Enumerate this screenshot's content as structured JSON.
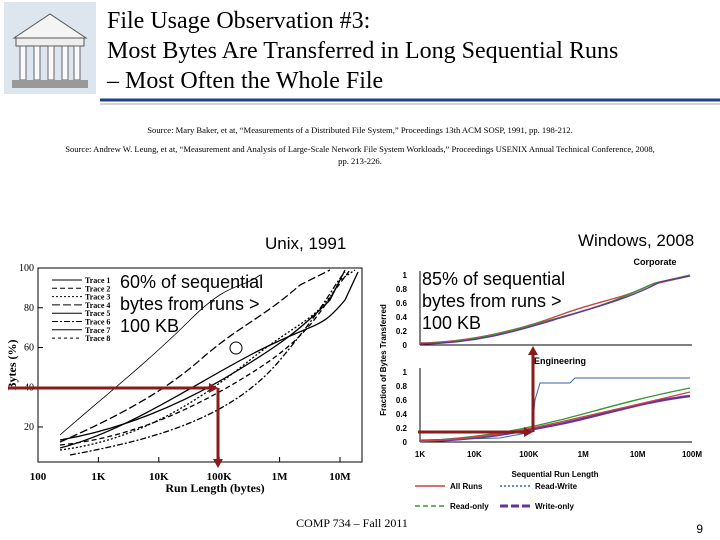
{
  "header": {
    "title": [
      "File Usage Observation #3:",
      "Most Bytes Are Transferred in Long Sequential Runs",
      "– Most Often the Whole File"
    ]
  },
  "sources": [
    "Source: Mary Baker, et at, “Measurements of a Distributed File System,” Proceedings 13th ACM SOSP, 1991, pp. 198-212.",
    "Source: Andrew W. Leung, et at, “Measurement and Analysis of Large-Scale Network File System Workloads,” Proceedings USENIX Annual Technical Conference, 2008,",
    "pp. 213-226."
  ],
  "left_figure": {
    "heading": "Unix, 1991",
    "annotation": [
      "60% of sequential",
      "bytes from runs >",
      "100 KB"
    ],
    "y_label": "Bytes (%)",
    "x_label": "Run Length (bytes)",
    "y_ticks": [
      "20",
      "40",
      "60",
      "80",
      "100"
    ],
    "x_ticks": [
      "100",
      "1K",
      "10K",
      "100K",
      "1M",
      "10M"
    ],
    "legend": [
      "Trace 1",
      "Trace 2",
      "Trace 3",
      "Trace 4",
      "Trace 5",
      "Trace 6",
      "Trace 7",
      "Trace 8"
    ]
  },
  "right_figure": {
    "heading": "Windows, 2008",
    "annotation": [
      "85% of sequential",
      "bytes from runs >",
      "100 KB"
    ],
    "y_label": "Fraction of Bytes Transferred",
    "panels": [
      {
        "title": "Corporate",
        "y_ticks": [
          "1",
          "0.8",
          "0.6",
          "0.4",
          "0.2",
          "0"
        ]
      },
      {
        "title": "Engineering",
        "y_ticks": [
          "1",
          "0.8",
          "0.6",
          "0.4",
          "0.2",
          "0"
        ]
      }
    ],
    "x_ticks": [
      "1K",
      "10K",
      "100K",
      "1M",
      "10M",
      "100M"
    ],
    "x_label": "Sequential Run Length",
    "legend": [
      "All Runs",
      "Read-Write",
      "Read-only",
      "Write-only"
    ]
  },
  "footer": {
    "course": "COMP 734 – Fall 2011",
    "page": "9"
  }
}
